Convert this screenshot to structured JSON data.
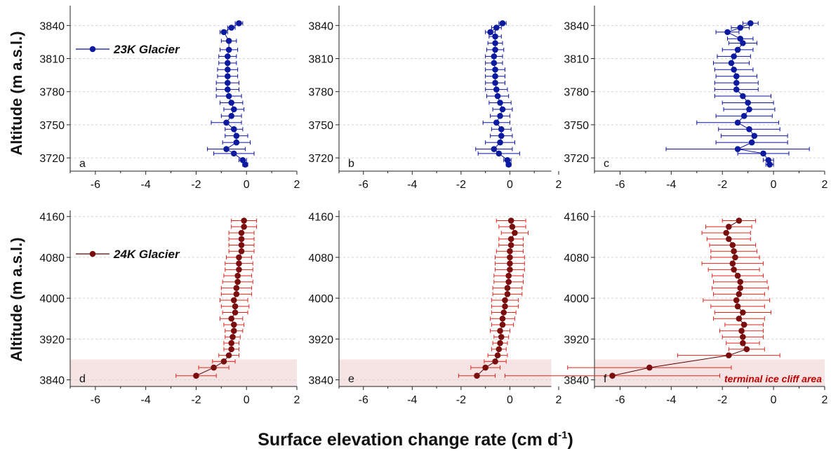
{
  "figure": {
    "ylabel": "Altitude (m a.s.l.)",
    "xlabel_main": "Surface elevation change rate (cm d",
    "xlabel_sup": "-1",
    "xlabel_end": ")"
  },
  "colors": {
    "blue_series": "#0a12a0",
    "blue_marker": "#0b1a9e",
    "red_series": "#e0261c",
    "red_marker": "#7a0d0d",
    "red_line": "#5a0000",
    "shade": "#f6e4e4",
    "zone_text": "#c00000",
    "grid": "#d4d4d4"
  },
  "chart_data": [
    {
      "type": "scatter",
      "panel": "a",
      "row": 0,
      "col": 0,
      "xlim": [
        -7,
        2
      ],
      "xticks": [
        -6,
        -4,
        -2,
        0,
        2
      ],
      "ylim": [
        3708,
        3858
      ],
      "yticks": [
        3720,
        3750,
        3780,
        3810,
        3840
      ],
      "grid": "horizontal dashed",
      "color": "blue",
      "legend": "23K Glacier",
      "legend_position": "top-left",
      "points": [
        {
          "x": -0.3,
          "y": 3842,
          "err": 0.15
        },
        {
          "x": -0.6,
          "y": 3838,
          "err": 0.15
        },
        {
          "x": -0.9,
          "y": 3834,
          "err": 0.15
        },
        {
          "x": -0.7,
          "y": 3826,
          "err": 0.3
        },
        {
          "x": -0.7,
          "y": 3818,
          "err": 0.35
        },
        {
          "x": -0.75,
          "y": 3812,
          "err": 0.35
        },
        {
          "x": -0.75,
          "y": 3806,
          "err": 0.35
        },
        {
          "x": -0.75,
          "y": 3800,
          "err": 0.4
        },
        {
          "x": -0.75,
          "y": 3794,
          "err": 0.4
        },
        {
          "x": -0.75,
          "y": 3788,
          "err": 0.45
        },
        {
          "x": -0.75,
          "y": 3782,
          "err": 0.45
        },
        {
          "x": -0.7,
          "y": 3776,
          "err": 0.5
        },
        {
          "x": -0.6,
          "y": 3770,
          "err": 0.45
        },
        {
          "x": -0.5,
          "y": 3764,
          "err": 0.4
        },
        {
          "x": -0.6,
          "y": 3758,
          "err": 0.4
        },
        {
          "x": -0.8,
          "y": 3752,
          "err": 0.6
        },
        {
          "x": -0.5,
          "y": 3746,
          "err": 0.35
        },
        {
          "x": -0.4,
          "y": 3740,
          "err": 0.45
        },
        {
          "x": -0.4,
          "y": 3734,
          "err": 0.55
        },
        {
          "x": -0.8,
          "y": 3728,
          "err": 0.75
        },
        {
          "x": -0.5,
          "y": 3724,
          "err": 0.8
        },
        {
          "x": -0.15,
          "y": 3718,
          "err": 0.15
        },
        {
          "x": -0.05,
          "y": 3714,
          "err": 0.1
        }
      ]
    },
    {
      "type": "scatter",
      "panel": "b",
      "row": 0,
      "col": 1,
      "xlim": [
        -7,
        1.7
      ],
      "xticks": [
        -6,
        -4,
        -2,
        0,
        2
      ],
      "ylim": [
        3708,
        3858
      ],
      "yticks": [
        3720,
        3750,
        3780,
        3810,
        3840
      ],
      "grid": "horizontal dashed",
      "color": "blue",
      "points": [
        {
          "x": -0.3,
          "y": 3842,
          "err": 0.15
        },
        {
          "x": -0.55,
          "y": 3838,
          "err": 0.2
        },
        {
          "x": -0.8,
          "y": 3834,
          "err": 0.2
        },
        {
          "x": -0.6,
          "y": 3830,
          "err": 0.25
        },
        {
          "x": -0.6,
          "y": 3824,
          "err": 0.3
        },
        {
          "x": -0.6,
          "y": 3818,
          "err": 0.35
        },
        {
          "x": -0.65,
          "y": 3812,
          "err": 0.35
        },
        {
          "x": -0.65,
          "y": 3806,
          "err": 0.35
        },
        {
          "x": -0.6,
          "y": 3800,
          "err": 0.4
        },
        {
          "x": -0.6,
          "y": 3794,
          "err": 0.4
        },
        {
          "x": -0.6,
          "y": 3788,
          "err": 0.4
        },
        {
          "x": -0.55,
          "y": 3782,
          "err": 0.45
        },
        {
          "x": -0.5,
          "y": 3776,
          "err": 0.45
        },
        {
          "x": -0.4,
          "y": 3770,
          "err": 0.45
        },
        {
          "x": -0.3,
          "y": 3764,
          "err": 0.4
        },
        {
          "x": -0.4,
          "y": 3758,
          "err": 0.4
        },
        {
          "x": -0.55,
          "y": 3752,
          "err": 0.55
        },
        {
          "x": -0.35,
          "y": 3746,
          "err": 0.4
        },
        {
          "x": -0.35,
          "y": 3740,
          "err": 0.45
        },
        {
          "x": -0.4,
          "y": 3734,
          "err": 0.6
        },
        {
          "x": -0.65,
          "y": 3728,
          "err": 0.75
        },
        {
          "x": -0.45,
          "y": 3724,
          "err": 0.85
        },
        {
          "x": -0.1,
          "y": 3718,
          "err": 0.15
        },
        {
          "x": -0.05,
          "y": 3714,
          "err": 0.1
        }
      ]
    },
    {
      "type": "scatter",
      "panel": "c",
      "row": 0,
      "col": 2,
      "xlim": [
        -7,
        2
      ],
      "xticks": [
        -6,
        -4,
        -2,
        0,
        2
      ],
      "ylim": [
        3708,
        3858
      ],
      "yticks": [
        3720,
        3750,
        3780,
        3810,
        3840
      ],
      "grid": "horizontal dashed",
      "color": "blue",
      "points": [
        {
          "x": -0.9,
          "y": 3842,
          "err": 0.3
        },
        {
          "x": -1.3,
          "y": 3838,
          "err": 0.35
        },
        {
          "x": -1.8,
          "y": 3834,
          "err": 0.45
        },
        {
          "x": -1.3,
          "y": 3828,
          "err": 0.5
        },
        {
          "x": -1.2,
          "y": 3824,
          "err": 0.55
        },
        {
          "x": -1.4,
          "y": 3818,
          "err": 0.6
        },
        {
          "x": -1.55,
          "y": 3812,
          "err": 0.65
        },
        {
          "x": -1.65,
          "y": 3806,
          "err": 0.7
        },
        {
          "x": -1.55,
          "y": 3800,
          "err": 0.75
        },
        {
          "x": -1.45,
          "y": 3794,
          "err": 0.8
        },
        {
          "x": -1.45,
          "y": 3788,
          "err": 0.85
        },
        {
          "x": -1.45,
          "y": 3782,
          "err": 0.85
        },
        {
          "x": -1.2,
          "y": 3776,
          "err": 1.1
        },
        {
          "x": -1.0,
          "y": 3770,
          "err": 1.0
        },
        {
          "x": -0.95,
          "y": 3764,
          "err": 1.0
        },
        {
          "x": -1.15,
          "y": 3758,
          "err": 1.1
        },
        {
          "x": -1.4,
          "y": 3752,
          "err": 1.6
        },
        {
          "x": -0.95,
          "y": 3746,
          "err": 1.2
        },
        {
          "x": -0.75,
          "y": 3740,
          "err": 1.3
        },
        {
          "x": -0.85,
          "y": 3734,
          "err": 1.4
        },
        {
          "x": -1.4,
          "y": 3728,
          "err": 2.8
        },
        {
          "x": -0.4,
          "y": 3724,
          "err": 1.0
        },
        {
          "x": -0.2,
          "y": 3718,
          "err": 0.2
        },
        {
          "x": -0.15,
          "y": 3714,
          "err": 0.15
        }
      ]
    },
    {
      "type": "scatter",
      "panel": "d",
      "row": 1,
      "col": 0,
      "xlim": [
        -7,
        2
      ],
      "xticks": [
        -6,
        -4,
        -2,
        0,
        2
      ],
      "ylim": [
        3827,
        4172
      ],
      "yticks": [
        3840,
        3920,
        4000,
        4080,
        4160
      ],
      "grid": "horizontal dashed",
      "color": "red",
      "legend": "24K Glacier",
      "legend_position": "top-left",
      "shaded_band": [
        3827,
        3880
      ],
      "points": [
        {
          "x": -0.1,
          "y": 4152,
          "err": 0.5
        },
        {
          "x": -0.1,
          "y": 4140,
          "err": 0.5
        },
        {
          "x": -0.2,
          "y": 4128,
          "err": 0.5
        },
        {
          "x": -0.2,
          "y": 4116,
          "err": 0.5
        },
        {
          "x": -0.2,
          "y": 4104,
          "err": 0.5
        },
        {
          "x": -0.2,
          "y": 4092,
          "err": 0.5
        },
        {
          "x": -0.3,
          "y": 4080,
          "err": 0.5
        },
        {
          "x": -0.3,
          "y": 4068,
          "err": 0.55
        },
        {
          "x": -0.3,
          "y": 4056,
          "err": 0.55
        },
        {
          "x": -0.35,
          "y": 4044,
          "err": 0.55
        },
        {
          "x": -0.35,
          "y": 4032,
          "err": 0.6
        },
        {
          "x": -0.4,
          "y": 4020,
          "err": 0.6
        },
        {
          "x": -0.4,
          "y": 4008,
          "err": 0.6
        },
        {
          "x": -0.5,
          "y": 3996,
          "err": 0.55
        },
        {
          "x": -0.45,
          "y": 3984,
          "err": 0.55
        },
        {
          "x": -0.45,
          "y": 3972,
          "err": 0.5
        },
        {
          "x": -0.6,
          "y": 3960,
          "err": 0.45
        },
        {
          "x": -0.5,
          "y": 3948,
          "err": 0.4
        },
        {
          "x": -0.5,
          "y": 3936,
          "err": 0.35
        },
        {
          "x": -0.55,
          "y": 3924,
          "err": 0.3
        },
        {
          "x": -0.6,
          "y": 3912,
          "err": 0.3
        },
        {
          "x": -0.6,
          "y": 3900,
          "err": 0.3
        },
        {
          "x": -0.7,
          "y": 3888,
          "err": 0.4
        },
        {
          "x": -0.9,
          "y": 3876,
          "err": 0.45
        },
        {
          "x": -1.3,
          "y": 3864,
          "err": 0.6
        },
        {
          "x": -2.0,
          "y": 3848,
          "err": 0.8
        }
      ]
    },
    {
      "type": "scatter",
      "panel": "e",
      "row": 1,
      "col": 1,
      "xlim": [
        -7,
        1.7
      ],
      "xticks": [
        -6,
        -4,
        -2,
        0,
        2
      ],
      "ylim": [
        3827,
        4172
      ],
      "yticks": [
        3840,
        3920,
        4000,
        4080,
        4160
      ],
      "grid": "horizontal dashed",
      "color": "red",
      "shaded_band": [
        3827,
        3880
      ],
      "points": [
        {
          "x": 0.05,
          "y": 4152,
          "err": 0.6
        },
        {
          "x": 0.1,
          "y": 4140,
          "err": 0.55
        },
        {
          "x": 0.2,
          "y": 4128,
          "err": 0.55
        },
        {
          "x": 0.05,
          "y": 4116,
          "err": 0.5
        },
        {
          "x": 0.05,
          "y": 4104,
          "err": 0.5
        },
        {
          "x": 0.0,
          "y": 4092,
          "err": 0.55
        },
        {
          "x": 0.0,
          "y": 4080,
          "err": 0.6
        },
        {
          "x": 0.0,
          "y": 4068,
          "err": 0.6
        },
        {
          "x": 0.0,
          "y": 4056,
          "err": 0.6
        },
        {
          "x": -0.05,
          "y": 4044,
          "err": 0.6
        },
        {
          "x": -0.05,
          "y": 4032,
          "err": 0.6
        },
        {
          "x": -0.1,
          "y": 4020,
          "err": 0.6
        },
        {
          "x": -0.1,
          "y": 4008,
          "err": 0.6
        },
        {
          "x": -0.2,
          "y": 3996,
          "err": 0.55
        },
        {
          "x": -0.2,
          "y": 3984,
          "err": 0.55
        },
        {
          "x": -0.25,
          "y": 3972,
          "err": 0.5
        },
        {
          "x": -0.3,
          "y": 3960,
          "err": 0.5
        },
        {
          "x": -0.3,
          "y": 3948,
          "err": 0.45
        },
        {
          "x": -0.4,
          "y": 3936,
          "err": 0.4
        },
        {
          "x": -0.35,
          "y": 3924,
          "err": 0.3
        },
        {
          "x": -0.4,
          "y": 3912,
          "err": 0.3
        },
        {
          "x": -0.45,
          "y": 3900,
          "err": 0.3
        },
        {
          "x": -0.5,
          "y": 3888,
          "err": 0.4
        },
        {
          "x": -0.6,
          "y": 3876,
          "err": 0.45
        },
        {
          "x": -1.0,
          "y": 3864,
          "err": 0.6
        },
        {
          "x": -1.35,
          "y": 3848,
          "err": 0.75
        }
      ]
    },
    {
      "type": "scatter",
      "panel": "f",
      "row": 1,
      "col": 2,
      "xlim": [
        -7,
        2
      ],
      "xticks": [
        -6,
        -4,
        -2,
        0,
        2
      ],
      "ylim": [
        3827,
        4172
      ],
      "yticks": [
        3840,
        3920,
        4000,
        4080,
        4160
      ],
      "grid": "horizontal dashed",
      "color": "red",
      "shaded_band": [
        3827,
        3880
      ],
      "zone_label": "terminal ice cliff area",
      "points": [
        {
          "x": -1.35,
          "y": 4152,
          "err": 0.65
        },
        {
          "x": -1.75,
          "y": 4140,
          "err": 0.9
        },
        {
          "x": -1.85,
          "y": 4128,
          "err": 0.95
        },
        {
          "x": -1.75,
          "y": 4116,
          "err": 0.85
        },
        {
          "x": -1.6,
          "y": 4104,
          "err": 0.9
        },
        {
          "x": -1.55,
          "y": 4092,
          "err": 0.9
        },
        {
          "x": -1.5,
          "y": 4080,
          "err": 0.95
        },
        {
          "x": -1.6,
          "y": 4068,
          "err": 1.2
        },
        {
          "x": -1.55,
          "y": 4056,
          "err": 1.0
        },
        {
          "x": -1.4,
          "y": 4044,
          "err": 1.0
        },
        {
          "x": -1.3,
          "y": 4032,
          "err": 1.05
        },
        {
          "x": -1.3,
          "y": 4020,
          "err": 1.1
        },
        {
          "x": -1.35,
          "y": 4008,
          "err": 1.0
        },
        {
          "x": -1.45,
          "y": 3996,
          "err": 1.3
        },
        {
          "x": -1.4,
          "y": 3984,
          "err": 1.05
        },
        {
          "x": -1.2,
          "y": 3972,
          "err": 1.1
        },
        {
          "x": -1.35,
          "y": 3960,
          "err": 1.0
        },
        {
          "x": -1.15,
          "y": 3948,
          "err": 0.75
        },
        {
          "x": -1.25,
          "y": 3936,
          "err": 0.85
        },
        {
          "x": -1.2,
          "y": 3924,
          "err": 0.8
        },
        {
          "x": -1.2,
          "y": 3912,
          "err": 0.65
        },
        {
          "x": -1.05,
          "y": 3900,
          "err": 0.7
        },
        {
          "x": -1.75,
          "y": 3888,
          "err": 2.0
        },
        {
          "x": -4.85,
          "y": 3864,
          "err": 3.2
        },
        {
          "x": -6.3,
          "y": 3848,
          "err": 4.2
        }
      ]
    }
  ]
}
